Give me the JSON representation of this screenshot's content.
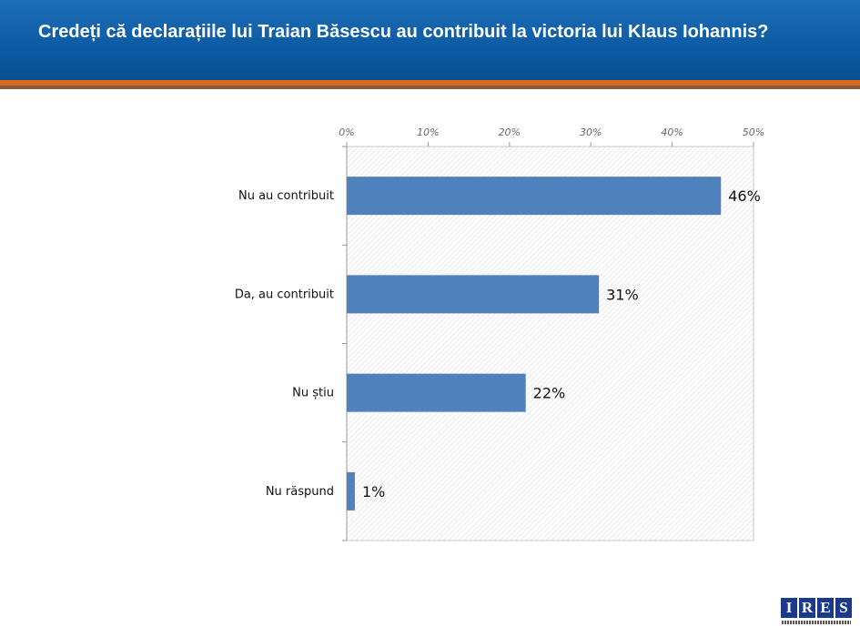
{
  "header": {
    "title": "Credeți că declarațiile lui Traian Băsescu au contribuit la victoria lui Klaus Iohannis?"
  },
  "logo": {
    "letters": [
      "I",
      "R",
      "E",
      "S"
    ]
  },
  "colors": {
    "header_blue": "#0b5aa4",
    "stripe_orange": "#d96a1e",
    "bar": "#4f81bd"
  },
  "chart_data": {
    "type": "bar",
    "orientation": "horizontal",
    "title": "Credeți că declarațiile lui Traian Băsescu au contribuit la victoria lui Klaus Iohannis?",
    "categories": [
      "Nu au contribuit",
      "Da, au contribuit",
      "Nu știu",
      "Nu răspund"
    ],
    "values": [
      46,
      31,
      22,
      1
    ],
    "data_labels": [
      "46%",
      "31%",
      "22%",
      "1%"
    ],
    "xlim": [
      0,
      50
    ],
    "ticks": [
      0,
      10,
      20,
      30,
      40,
      50
    ],
    "tick_labels": [
      "0%",
      "10%",
      "20%",
      "30%",
      "40%",
      "50%"
    ],
    "axis_position": "top",
    "grid": false,
    "legend": "none"
  }
}
